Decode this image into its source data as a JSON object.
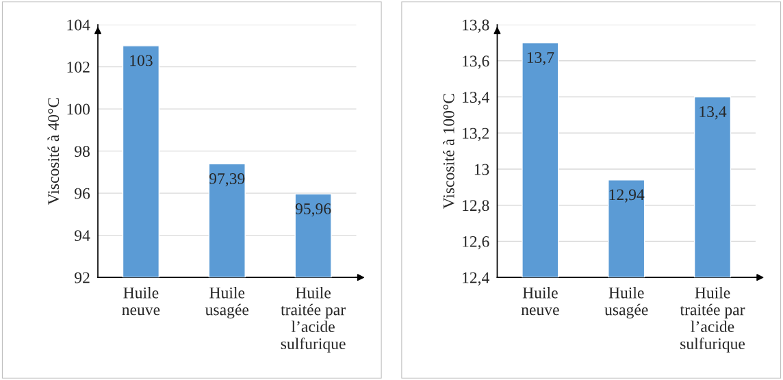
{
  "chart_data": [
    {
      "type": "bar",
      "ylabel": "Viscosité à 40°C",
      "categories": [
        "Huile\nneuve",
        "Huile\nusagée",
        "Huile\ntraitée par\nl’acide\nsulfurique"
      ],
      "values": [
        103,
        97.39,
        95.96
      ],
      "value_labels": [
        "103",
        "97,39",
        "95,96"
      ],
      "color": "#5b9bd5",
      "ylim": [
        92,
        104
      ],
      "yticks": [
        92,
        94,
        96,
        98,
        100,
        102,
        104
      ],
      "grid": "y",
      "legend": false
    },
    {
      "type": "bar",
      "ylabel": "Viscosité à 100°C",
      "categories": [
        "Huile\nneuve",
        "Huile\nusagée",
        "Huile\ntraitée par\nl’acide\nsulfurique"
      ],
      "values": [
        13.7,
        12.94,
        13.4
      ],
      "value_labels": [
        "13,7",
        "12,94",
        "13,4"
      ],
      "color": "#5b9bd5",
      "ylim": [
        12.4,
        13.8
      ],
      "yticks": [
        {
          "value": 12.4,
          "label": "12,4"
        },
        {
          "value": 12.6,
          "label": "12,6"
        },
        {
          "value": 12.8,
          "label": "12,8"
        },
        13,
        {
          "value": 13.2,
          "label": "13,2"
        },
        {
          "value": 13.4,
          "label": "13,4"
        },
        {
          "value": 13.6,
          "label": "13,6"
        },
        {
          "value": 13.8,
          "label": "13,8"
        }
      ],
      "grid": "y",
      "legend": false
    }
  ]
}
